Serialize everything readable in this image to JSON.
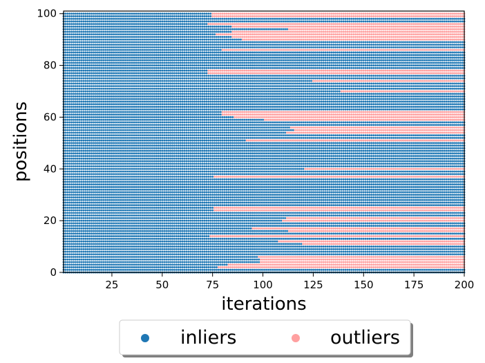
{
  "chart_data": {
    "type": "scatter",
    "title": "",
    "xlabel": "iterations",
    "ylabel": "positions",
    "xlim": [
      1,
      200
    ],
    "ylim": [
      0,
      101
    ],
    "x_ticks": [
      25,
      50,
      75,
      100,
      125,
      150,
      175,
      200
    ],
    "y_ticks": [
      0,
      20,
      40,
      60,
      80,
      100
    ],
    "grid": false,
    "legend_position": "bottom-center",
    "series": [
      {
        "name": "inliers",
        "color": "#1f77b4"
      },
      {
        "name": "outliers",
        "color": "#ffa0a0"
      }
    ],
    "outlier_start_iteration_by_position": {
      "2": 78,
      "3": 83,
      "4": 99,
      "5": 99,
      "6": 98,
      "11": 120,
      "12": 108,
      "14": 74,
      "16": 113,
      "17": 95,
      "20": 110,
      "21": 112,
      "24": 76,
      "25": 76,
      "37": 76,
      "40": 121,
      "51": 92,
      "54": 112,
      "55": 116,
      "56": 114,
      "59": 101,
      "60": 86,
      "61": 80,
      "62": 80,
      "70": 139,
      "74": 125,
      "77": 73,
      "78": 73,
      "86": 80,
      "90": 90,
      "91": 85,
      "92": 77,
      "93": 85,
      "94": 113,
      "95": 85,
      "96": 73,
      "99": 75,
      "100": 75
    }
  },
  "legend": {
    "inliers_label": "inliers",
    "outliers_label": "outliers"
  }
}
